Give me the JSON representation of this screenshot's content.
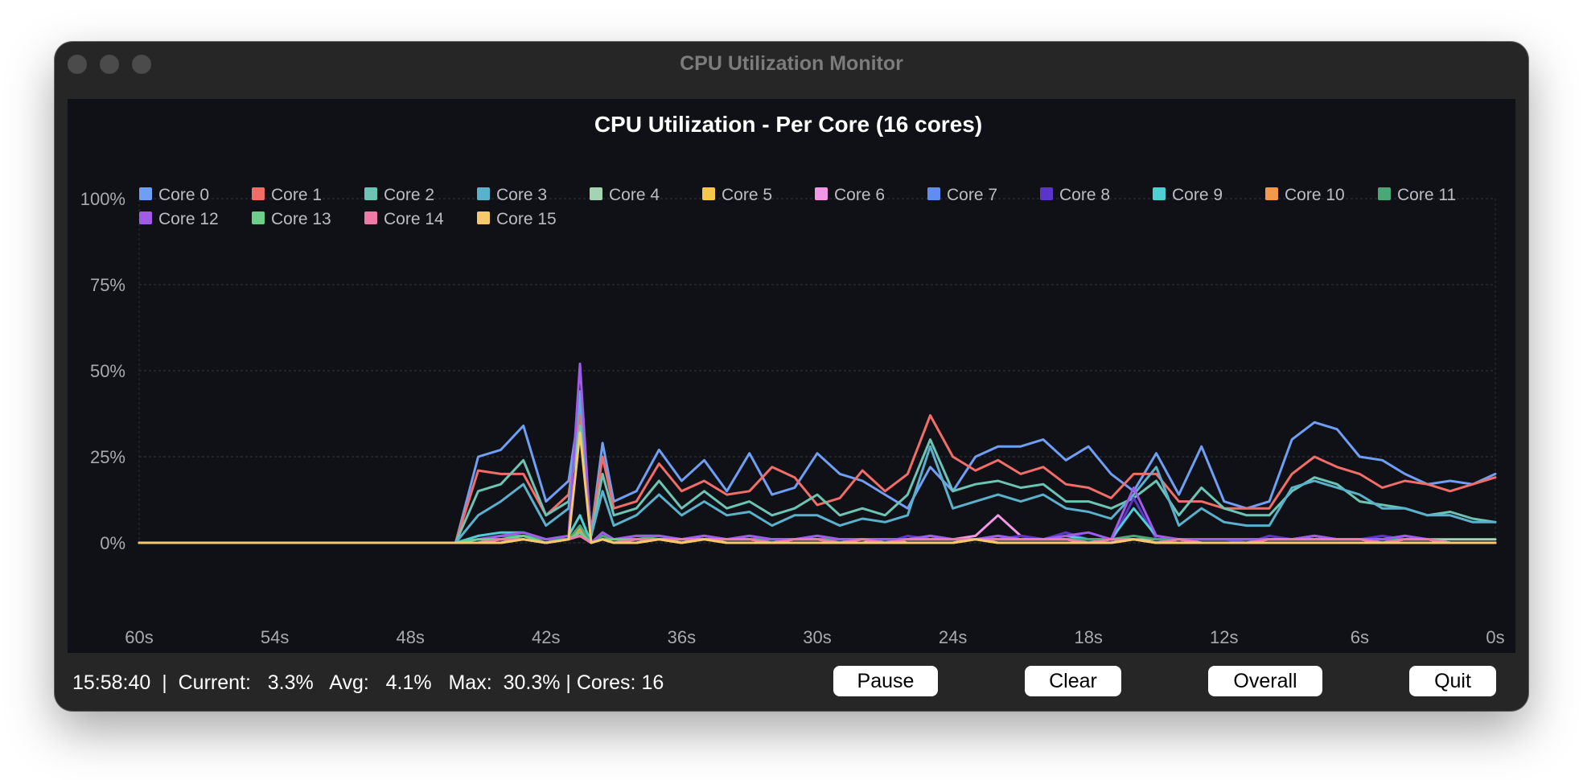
{
  "window": {
    "title": "CPU Utilization Monitor"
  },
  "status": {
    "time": "15:58:40",
    "current_label": "Current:",
    "current_value": "3.3%",
    "avg_label": "Avg:",
    "avg_value": "4.1%",
    "max_label": "Max:",
    "max_value": "30.3%",
    "cores_label": "Cores:",
    "cores_value": "16"
  },
  "buttons": {
    "pause": "Pause",
    "clear": "Clear",
    "overall": "Overall",
    "quit": "Quit"
  },
  "chart_data": {
    "type": "line",
    "title": "CPU Utilization - Per Core (16 cores)",
    "xlabel": "",
    "ylabel": "",
    "xlim": [
      60,
      0
    ],
    "ylim": [
      0,
      100
    ],
    "x_tick_labels": [
      "60s",
      "54s",
      "48s",
      "42s",
      "36s",
      "30s",
      "24s",
      "18s",
      "12s",
      "6s",
      "0s"
    ],
    "y_tick_labels": [
      "0%",
      "25%",
      "50%",
      "75%",
      "100%"
    ],
    "grid": true,
    "legend_position": "top-left",
    "x": [
      60,
      58,
      56,
      54,
      52,
      50,
      48,
      46,
      45,
      44,
      43,
      42,
      41,
      40.5,
      40,
      39.5,
      39,
      38,
      37,
      36,
      35,
      34,
      33,
      32,
      31,
      30,
      29,
      28,
      27,
      26,
      25,
      24,
      23,
      22,
      21,
      20,
      19,
      18,
      17,
      16,
      15,
      14,
      13,
      12,
      11,
      10,
      9,
      8,
      7,
      6,
      5,
      4,
      3,
      2,
      1,
      0
    ],
    "series": [
      {
        "name": "Core 0",
        "color": "#6f9ff5",
        "values": [
          0,
          0,
          0,
          0,
          0,
          0,
          0,
          0,
          25,
          27,
          34,
          12,
          18,
          40,
          3,
          29,
          12,
          15,
          27,
          18,
          24,
          15,
          26,
          14,
          16,
          26,
          20,
          18,
          14,
          10,
          22,
          15,
          25,
          28,
          28,
          30,
          24,
          28,
          20,
          15,
          26,
          14,
          28,
          12,
          10,
          12,
          30,
          35,
          33,
          25,
          24,
          20,
          17,
          18,
          17,
          20
        ]
      },
      {
        "name": "Core 1",
        "color": "#f26d68",
        "values": [
          0,
          0,
          0,
          0,
          0,
          0,
          0,
          0,
          21,
          20,
          20,
          8,
          14,
          37,
          3,
          25,
          10,
          12,
          23,
          15,
          18,
          14,
          15,
          22,
          19,
          11,
          13,
          21,
          15,
          20,
          37,
          25,
          21,
          24,
          20,
          22,
          17,
          16,
          13,
          20,
          20,
          12,
          12,
          10,
          10,
          10,
          20,
          25,
          22,
          20,
          16,
          18,
          17,
          15,
          17,
          19
        ]
      },
      {
        "name": "Core 2",
        "color": "#6cc4b4",
        "values": [
          0,
          0,
          0,
          0,
          0,
          0,
          0,
          0,
          15,
          17,
          24,
          8,
          12,
          34,
          2,
          20,
          8,
          10,
          18,
          10,
          15,
          10,
          12,
          8,
          10,
          14,
          8,
          10,
          8,
          14,
          30,
          15,
          17,
          18,
          16,
          17,
          12,
          12,
          10,
          13,
          18,
          8,
          16,
          10,
          8,
          8,
          15,
          19,
          17,
          12,
          11,
          10,
          8,
          9,
          7,
          6
        ]
      },
      {
        "name": "Core 3",
        "color": "#5ab1cc",
        "values": [
          0,
          0,
          0,
          0,
          0,
          0,
          0,
          0,
          8,
          12,
          17,
          5,
          10,
          44,
          2,
          15,
          5,
          8,
          14,
          8,
          12,
          8,
          9,
          5,
          8,
          8,
          5,
          7,
          6,
          8,
          28,
          10,
          12,
          14,
          12,
          14,
          10,
          9,
          7,
          14,
          22,
          5,
          10,
          6,
          5,
          5,
          16,
          18,
          16,
          14,
          10,
          10,
          8,
          8,
          6,
          6
        ]
      },
      {
        "name": "Core 4",
        "color": "#a3d4b2",
        "values": [
          0,
          0,
          0,
          0,
          0,
          0,
          0,
          0,
          1,
          1,
          2,
          1,
          1,
          3,
          0,
          2,
          1,
          1,
          1,
          1,
          1,
          1,
          1,
          1,
          1,
          1,
          1,
          1,
          1,
          1,
          1,
          1,
          1,
          1,
          1,
          1,
          1,
          1,
          1,
          1,
          1,
          1,
          1,
          1,
          1,
          1,
          1,
          1,
          1,
          1,
          1,
          1,
          1,
          1,
          1,
          1
        ]
      },
      {
        "name": "Core 5",
        "color": "#f5c84c",
        "values": [
          0,
          0,
          0,
          0,
          0,
          0,
          0,
          0,
          0,
          0,
          1,
          0,
          1,
          4,
          0,
          1,
          0,
          0,
          1,
          0,
          1,
          0,
          0,
          0,
          0,
          0,
          0,
          0,
          1,
          0,
          0,
          0,
          1,
          0,
          0,
          0,
          0,
          0,
          0,
          1,
          0,
          0,
          0,
          0,
          0,
          0,
          0,
          0,
          0,
          0,
          0,
          0,
          0,
          0,
          0,
          0
        ]
      },
      {
        "name": "Core 6",
        "color": "#f197e6",
        "values": [
          0,
          0,
          0,
          0,
          0,
          0,
          0,
          0,
          0,
          1,
          1,
          0,
          1,
          2,
          0,
          1,
          0,
          1,
          1,
          1,
          2,
          1,
          1,
          0,
          1,
          1,
          0,
          1,
          0,
          1,
          1,
          1,
          2,
          8,
          2,
          1,
          1,
          0,
          1,
          1,
          0,
          1,
          0,
          0,
          0,
          1,
          1,
          2,
          1,
          1,
          0,
          1,
          1,
          0,
          0,
          0
        ]
      },
      {
        "name": "Core 7",
        "color": "#5f8ef0",
        "values": [
          0,
          0,
          0,
          0,
          0,
          0,
          0,
          0,
          0,
          1,
          1,
          0,
          1,
          3,
          0,
          1,
          0,
          1,
          1,
          1,
          1,
          1,
          1,
          0,
          1,
          1,
          0,
          1,
          0,
          1,
          1,
          1,
          1,
          1,
          1,
          1,
          1,
          0,
          1,
          1,
          0,
          1,
          0,
          0,
          0,
          1,
          1,
          1,
          1,
          1,
          0,
          1,
          1,
          0,
          0,
          0
        ]
      },
      {
        "name": "Core 8",
        "color": "#5a35c8",
        "values": [
          0,
          0,
          0,
          0,
          0,
          0,
          0,
          0,
          1,
          1,
          2,
          0,
          1,
          4,
          0,
          2,
          1,
          1,
          1,
          1,
          1,
          1,
          1,
          0,
          1,
          1,
          0,
          1,
          0,
          2,
          1,
          1,
          1,
          1,
          2,
          1,
          3,
          1,
          0,
          13,
          1,
          0,
          1,
          1,
          0,
          2,
          1,
          2,
          1,
          1,
          2,
          1,
          1,
          0,
          0,
          0
        ]
      },
      {
        "name": "Core 9",
        "color": "#4ecfd4",
        "values": [
          0,
          0,
          0,
          0,
          0,
          0,
          0,
          0,
          2,
          3,
          3,
          1,
          2,
          8,
          0,
          3,
          1,
          2,
          2,
          1,
          2,
          1,
          2,
          1,
          1,
          2,
          1,
          1,
          1,
          1,
          2,
          1,
          1,
          2,
          1,
          1,
          2,
          1,
          1,
          10,
          2,
          1,
          1,
          1,
          1,
          1,
          1,
          2,
          1,
          1,
          1,
          2,
          1,
          0,
          0,
          0
        ]
      },
      {
        "name": "Core 10",
        "color": "#f4994a",
        "values": [
          0,
          0,
          0,
          0,
          0,
          0,
          0,
          0,
          0,
          1,
          1,
          0,
          1,
          4,
          0,
          1,
          0,
          0,
          1,
          0,
          1,
          0,
          0,
          0,
          0,
          0,
          0,
          0,
          0,
          0,
          0,
          0,
          1,
          0,
          0,
          0,
          0,
          0,
          0,
          1,
          0,
          0,
          0,
          0,
          0,
          0,
          0,
          0,
          0,
          0,
          0,
          0,
          0,
          0,
          0,
          0
        ]
      },
      {
        "name": "Core 11",
        "color": "#4aa877",
        "values": [
          0,
          0,
          0,
          0,
          0,
          0,
          0,
          0,
          1,
          2,
          2,
          1,
          1,
          5,
          0,
          2,
          1,
          1,
          2,
          1,
          1,
          1,
          1,
          1,
          1,
          1,
          1,
          1,
          1,
          1,
          2,
          1,
          1,
          1,
          1,
          1,
          1,
          1,
          1,
          2,
          1,
          1,
          1,
          1,
          1,
          1,
          1,
          1,
          1,
          1,
          1,
          1,
          1,
          0,
          0,
          0
        ]
      },
      {
        "name": "Core 12",
        "color": "#a05be8",
        "values": [
          0,
          0,
          0,
          0,
          0,
          0,
          0,
          0,
          1,
          2,
          3,
          1,
          2,
          52,
          0,
          3,
          1,
          2,
          2,
          1,
          2,
          1,
          2,
          1,
          1,
          2,
          1,
          1,
          1,
          1,
          2,
          1,
          1,
          2,
          1,
          1,
          2,
          3,
          1,
          16,
          2,
          1,
          1,
          1,
          1,
          1,
          1,
          2,
          1,
          1,
          1,
          2,
          1,
          0,
          0,
          0
        ]
      },
      {
        "name": "Core 13",
        "color": "#6cd08a",
        "values": [
          0,
          0,
          0,
          0,
          0,
          0,
          0,
          0,
          1,
          1,
          2,
          0,
          1,
          3,
          0,
          1,
          1,
          1,
          1,
          1,
          1,
          1,
          1,
          0,
          1,
          1,
          0,
          1,
          0,
          1,
          1,
          1,
          1,
          1,
          1,
          1,
          1,
          0,
          1,
          1,
          0,
          1,
          0,
          0,
          0,
          1,
          1,
          1,
          1,
          1,
          0,
          1,
          1,
          0,
          0,
          0
        ]
      },
      {
        "name": "Core 14",
        "color": "#ef7aa8",
        "values": [
          0,
          0,
          0,
          0,
          0,
          0,
          0,
          0,
          0,
          1,
          1,
          0,
          1,
          2,
          0,
          1,
          0,
          1,
          1,
          1,
          1,
          1,
          1,
          0,
          1,
          1,
          0,
          1,
          0,
          1,
          1,
          1,
          1,
          1,
          1,
          1,
          1,
          0,
          1,
          1,
          0,
          1,
          0,
          0,
          0,
          1,
          1,
          1,
          1,
          1,
          0,
          1,
          1,
          0,
          0,
          0
        ]
      },
      {
        "name": "Core 15",
        "color": "#f6c96b",
        "values": [
          0,
          0,
          0,
          0,
          0,
          0,
          0,
          0,
          0,
          0,
          1,
          0,
          1,
          32,
          0,
          1,
          0,
          0,
          1,
          0,
          1,
          0,
          0,
          0,
          0,
          0,
          0,
          0,
          0,
          0,
          0,
          0,
          1,
          0,
          0,
          0,
          0,
          0,
          0,
          1,
          0,
          0,
          0,
          0,
          0,
          0,
          0,
          0,
          0,
          0,
          0,
          0,
          0,
          0,
          0,
          0
        ]
      }
    ]
  }
}
